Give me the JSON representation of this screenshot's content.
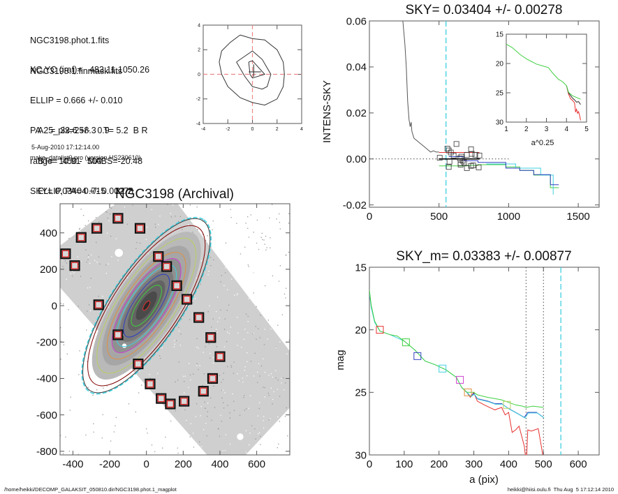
{
  "info_panel": {
    "files": [
      "NGC3198.phot.1.fits",
      "NGC3198.1.finmask.fits"
    ],
    "params": [
      "XC,YC (iraf)=   483.11,1050.26",
      "ELLIP = 0.666 +/- 0.010",
      "PA    =  33.6 +/-   0.9",
      "range=  450.-  500.",
      "SKY= 0.03404 +/- 0.00278"
    ],
    "catalog": [
      "A25_pix=258.3   T= 5.2  B R",
      "BT=  10.91   MABS=-20.48",
      "ELLIP, PA= 0.715    32.2"
    ],
    "date": "5-Aug-2010 17:12:14.00",
    "program": "make_datalist0.pro (version HS230610)"
  },
  "footer": {
    "left": "/home/heikki/DECOMP_GALAKSIT_050810.dir/NGC3198.phot.1_magplot",
    "right": "heikki@hiisi.oulu.fi  Thu Aug  5 17:12:14 2010"
  },
  "colors": {
    "axis": "#555555",
    "red": "#e83030",
    "green": "#40d040",
    "blue": "#3040c0",
    "cyan": "#40d0e0",
    "magenta": "#d040d0",
    "orange": "#e09040",
    "yellowgreen": "#b8d060",
    "darkred": "#800000",
    "curve": "#333333"
  },
  "chart_data": [
    {
      "id": "centroid",
      "type": "line",
      "title": "",
      "xlim": [
        -4,
        4
      ],
      "ylim": [
        -4,
        4
      ],
      "xticks": [
        "-4",
        "-2",
        "0",
        "2",
        "4"
      ],
      "yticks": [
        "-4",
        "-2",
        "0",
        "2",
        "4"
      ],
      "contours": [
        [
          [
            -1,
            3.2
          ],
          [
            0,
            2.9
          ],
          [
            1,
            2.8
          ],
          [
            2,
            2
          ],
          [
            2.5,
            1
          ],
          [
            2.6,
            0
          ],
          [
            2.5,
            -1
          ],
          [
            2,
            -2
          ],
          [
            1,
            -2.5
          ],
          [
            0,
            -2.3
          ],
          [
            -1,
            -1.9
          ],
          [
            -2,
            -1
          ],
          [
            -2.5,
            0
          ],
          [
            -2.7,
            1
          ],
          [
            -2.5,
            1.9
          ],
          [
            -1.8,
            2.6
          ],
          [
            -1,
            3.2
          ]
        ],
        [
          [
            -1.3,
            1
          ],
          [
            0,
            1.9
          ],
          [
            0.8,
            1.2
          ],
          [
            1.5,
            0
          ],
          [
            1.2,
            -1
          ],
          [
            0.8,
            -1.2
          ],
          [
            0,
            -1
          ],
          [
            -0.6,
            -0.2
          ],
          [
            -1.3,
            1
          ]
        ],
        [
          [
            -0.3,
            1
          ],
          [
            0,
            1.1
          ],
          [
            1,
            0
          ],
          [
            0,
            -0.3
          ],
          [
            -0.2,
            0
          ],
          [
            -0.3,
            1
          ]
        ]
      ],
      "cross": [
        0.1,
        0.2
      ]
    },
    {
      "id": "sky",
      "type": "line",
      "title": "SKY= 0.03404 +/- 0.00278",
      "xlabel": "",
      "ylabel": "INTENS-SKY",
      "xlim": [
        0,
        1650
      ],
      "ylim": [
        -0.021,
        0.06
      ],
      "xticks": [
        "0",
        "500",
        "1000",
        "1500"
      ],
      "yticks": [
        "-0.02",
        "0.00",
        "0.02",
        "0.04",
        "0.06"
      ],
      "sky_marker_x": 550,
      "profile": [
        [
          240,
          0.06
        ],
        [
          255,
          0.05
        ],
        [
          265,
          0.04
        ],
        [
          275,
          0.025
        ],
        [
          285,
          0.017
        ],
        [
          293,
          0.014
        ],
        [
          300,
          0.016
        ],
        [
          305,
          0.012
        ],
        [
          320,
          0.009
        ],
        [
          340,
          0.008
        ],
        [
          360,
          0.007
        ],
        [
          380,
          0.006
        ],
        [
          400,
          0.005
        ],
        [
          420,
          0.004
        ],
        [
          440,
          0.003
        ],
        [
          460,
          0.0035
        ],
        [
          480,
          0.003
        ],
        [
          500,
          0.003
        ]
      ],
      "squares": [
        [
          505,
          0.0005
        ],
        [
          560,
          0.0045
        ],
        [
          570,
          0.0037
        ],
        [
          585,
          0.0028
        ],
        [
          605,
          0.0015
        ],
        [
          625,
          0.0065
        ],
        [
          650,
          0.0003
        ],
        [
          660,
          0.001
        ],
        [
          670,
          -0.0008
        ],
        [
          700,
          0.0018
        ],
        [
          730,
          0.0042
        ],
        [
          735,
          0.0022
        ],
        [
          760,
          0.0018
        ],
        [
          575,
          -0.0012
        ],
        [
          570,
          -0.0035
        ],
        [
          655,
          -0.0018
        ],
        [
          655,
          -0.0025
        ],
        [
          680,
          -0.0015
        ],
        [
          700,
          -0.004
        ],
        [
          730,
          -0.003
        ],
        [
          745,
          -0.0028
        ],
        [
          785,
          -0.0037
        ],
        [
          790,
          0.0015
        ]
      ],
      "mean_line": [
        [
          500,
          0.0
        ],
        [
          790,
          0.0
        ]
      ],
      "red_line": [
        [
          500,
          0.0028
        ],
        [
          790,
          0.0028
        ]
      ],
      "blue_steps": [
        [
          570,
          0.001
        ],
        [
          680,
          -0.0008
        ],
        [
          780,
          -0.0015
        ],
        [
          980,
          -0.004
        ],
        [
          1080,
          -0.005
        ],
        [
          1180,
          -0.0068
        ],
        [
          1300,
          -0.0112
        ],
        [
          1360,
          -0.0112
        ]
      ],
      "green_steps": [
        [
          500,
          -0.003
        ],
        [
          700,
          -0.0028
        ],
        [
          780,
          -0.0025
        ],
        [
          980,
          -0.0035
        ],
        [
          1080,
          -0.005
        ],
        [
          1180,
          -0.007
        ],
        [
          1300,
          -0.0125
        ],
        [
          1360,
          -0.0125
        ]
      ],
      "cyan_steps": [
        [
          840,
          -0.0022
        ],
        [
          1050,
          -0.004
        ],
        [
          1230,
          -0.007
        ],
        [
          1320,
          -0.0155
        ]
      ],
      "inset": {
        "xlabel": "a^0.25",
        "xlim": [
          1,
          5
        ],
        "ylim": [
          30,
          15
        ],
        "xticks": [
          "1",
          "2",
          "3",
          "4",
          "5"
        ],
        "yticks": [
          "15",
          "20",
          "25",
          "30"
        ],
        "green": [
          [
            1,
            16.7
          ],
          [
            1.3,
            17.3
          ],
          [
            1.7,
            18.5
          ],
          [
            2,
            19.2
          ],
          [
            2.5,
            20.1
          ],
          [
            2.8,
            20.4
          ],
          [
            3.1,
            20.7
          ],
          [
            3.3,
            21.6
          ],
          [
            3.6,
            22.7
          ],
          [
            3.8,
            23.1
          ],
          [
            4,
            23.8
          ],
          [
            4.1,
            24.9
          ],
          [
            4.3,
            25.5
          ],
          [
            4.5,
            25.8
          ],
          [
            4.7,
            26.1
          ]
        ],
        "black": [
          [
            4,
            23.8
          ],
          [
            4.1,
            25.0
          ],
          [
            4.3,
            25.9
          ],
          [
            4.4,
            26.2
          ],
          [
            4.5,
            26.6
          ],
          [
            4.6,
            26.5
          ],
          [
            4.7,
            27
          ]
        ],
        "red": [
          [
            4,
            23.8
          ],
          [
            4.1,
            25.2
          ],
          [
            4.2,
            26.0
          ],
          [
            4.3,
            26.3
          ],
          [
            4.4,
            26.7
          ],
          [
            4.45,
            28.3
          ],
          [
            4.5,
            27.8
          ],
          [
            4.55,
            28.5
          ],
          [
            4.6,
            28.2
          ],
          [
            4.65,
            28.8
          ],
          [
            4.7,
            29.7
          ]
        ]
      }
    },
    {
      "id": "image",
      "type": "scatter",
      "title": "NGC3198 (Archival)",
      "xlim": [
        -470,
        780
      ],
      "ylim": [
        -820,
        560
      ],
      "xticks": [
        "-400",
        "-200",
        "0",
        "200",
        "400",
        "600"
      ],
      "yticks": [
        "-800",
        "-600",
        "-400",
        "-200",
        "0",
        "200",
        "400"
      ],
      "ellipses": [
        {
          "color": "red",
          "a": 30,
          "b": 12
        },
        {
          "color": "green",
          "a": 130,
          "b": 48
        },
        {
          "color": "blue",
          "a": 200,
          "b": 70
        },
        {
          "color": "cyan",
          "a": 260,
          "b": 92
        },
        {
          "color": "magenta",
          "a": 300,
          "b": 105
        },
        {
          "color": "orange",
          "a": 340,
          "b": 122
        },
        {
          "color": "yellowgreen",
          "a": 430,
          "b": 152
        },
        {
          "color": "darkred",
          "a": 510,
          "b": 180
        },
        {
          "color": "curve",
          "a": 555,
          "b": 192
        },
        {
          "color": "cyan",
          "a": 562,
          "b": 196
        }
      ],
      "pa_deg": 33.6,
      "sky_boxes": [
        [
          -155,
          480
        ],
        [
          -270,
          425
        ],
        [
          -35,
          425
        ],
        [
          -355,
          375
        ],
        [
          -440,
          285
        ],
        [
          -390,
          220
        ],
        [
          65,
          270
        ],
        [
          110,
          215
        ],
        [
          165,
          110
        ],
        [
          220,
          35
        ],
        [
          285,
          -65
        ],
        [
          350,
          -175
        ],
        [
          400,
          -280
        ],
        [
          -260,
          5
        ],
        [
          -155,
          -160
        ],
        [
          -45,
          -320
        ],
        [
          360,
          -400
        ],
        [
          310,
          -470
        ],
        [
          20,
          -430
        ],
        [
          80,
          -510
        ],
        [
          130,
          -540
        ],
        [
          205,
          -525
        ]
      ]
    },
    {
      "id": "magprofile",
      "type": "line",
      "title": "SKY_m=  0.03383 +/- 0.00877",
      "xlabel": "a (pix)",
      "ylabel": "mag",
      "xlim": [
        0,
        660
      ],
      "ylim": [
        30,
        15
      ],
      "xticks": [
        "0",
        "100",
        "200",
        "300",
        "400",
        "500",
        "600"
      ],
      "yticks": [
        "15",
        "20",
        "25",
        "30"
      ],
      "range_lines": [
        450,
        500
      ],
      "sky_marker_x": 550,
      "green": [
        [
          0,
          16.8
        ],
        [
          5,
          18
        ],
        [
          15,
          19.3
        ],
        [
          30,
          20.1
        ],
        [
          60,
          20.4
        ],
        [
          80,
          20.5
        ],
        [
          100,
          20.9
        ],
        [
          130,
          21.6
        ],
        [
          160,
          22.5
        ],
        [
          190,
          22.8
        ],
        [
          220,
          23.2
        ],
        [
          250,
          23.8
        ],
        [
          265,
          24.6
        ],
        [
          280,
          25.0
        ],
        [
          300,
          25
        ],
        [
          310,
          25.2
        ],
        [
          340,
          25.4
        ],
        [
          360,
          25.5
        ],
        [
          380,
          25.6
        ],
        [
          400,
          25.8
        ],
        [
          420,
          26.0
        ],
        [
          440,
          26.1
        ],
        [
          450,
          26.2
        ],
        [
          470,
          26.1
        ],
        [
          500,
          26.2
        ]
      ],
      "blue": [
        [
          265,
          24.6
        ],
        [
          280,
          25.0
        ],
        [
          290,
          25.3
        ],
        [
          300,
          25.1
        ],
        [
          310,
          25.5
        ],
        [
          340,
          25.7
        ],
        [
          360,
          25.9
        ],
        [
          380,
          25.9
        ],
        [
          400,
          26.3
        ],
        [
          420,
          26.6
        ],
        [
          445,
          27.0
        ],
        [
          455,
          26.6
        ],
        [
          480,
          26.6
        ],
        [
          500,
          27.0
        ]
      ],
      "cyan": [
        [
          0,
          17
        ],
        [
          5,
          18.2
        ],
        [
          15,
          19.4
        ],
        [
          30,
          20.1
        ],
        [
          60,
          20.4
        ],
        [
          100,
          20.9
        ],
        [
          130,
          21.6
        ],
        [
          160,
          22.5
        ],
        [
          190,
          22.8
        ],
        [
          220,
          23.2
        ],
        [
          250,
          23.8
        ],
        [
          265,
          24.6
        ]
      ],
      "red": [
        [
          265,
          24.6
        ],
        [
          280,
          25.0
        ],
        [
          290,
          25.4
        ],
        [
          300,
          25.0
        ],
        [
          310,
          25.7
        ],
        [
          330,
          26.0
        ],
        [
          360,
          26.4
        ],
        [
          380,
          26.2
        ],
        [
          390,
          26.8
        ],
        [
          400,
          26.6
        ],
        [
          410,
          28.2
        ],
        [
          420,
          28.0
        ],
        [
          430,
          27.7
        ],
        [
          445,
          29.3
        ],
        [
          448,
          30
        ],
        [
          452,
          30
        ],
        [
          455,
          28
        ],
        [
          465,
          28.1
        ],
        [
          485,
          27.9
        ],
        [
          495,
          29.5
        ],
        [
          498,
          30
        ]
      ],
      "markers": [
        [
          30,
          20,
          "red"
        ],
        [
          105,
          21,
          "green"
        ],
        [
          138,
          22.1,
          "blue"
        ],
        [
          210,
          23.1,
          "cyan"
        ],
        [
          260,
          24.0,
          "magenta"
        ],
        [
          283,
          25.0,
          "orange"
        ],
        [
          395,
          26.0,
          "yellowgreen"
        ]
      ]
    }
  ]
}
